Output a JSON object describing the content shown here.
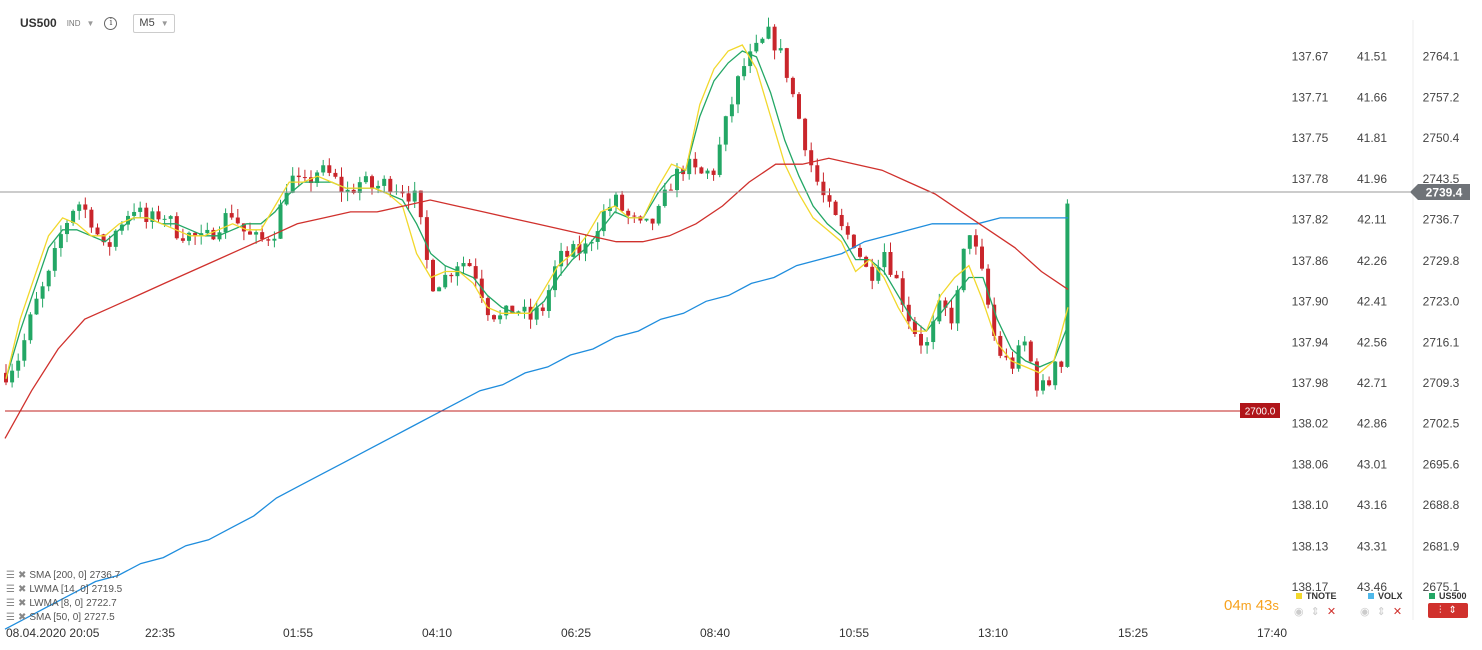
{
  "header": {
    "symbol": "US500",
    "type": "IND",
    "info_icon": "info-icon",
    "timeframe": "M5"
  },
  "chart_data": {
    "type": "candlestick",
    "symbol": "US500",
    "timeframe": "M5",
    "price_axis": {
      "range": [
        2668.7,
        2770.7
      ],
      "ticks": [
        2764.1,
        2757.2,
        2750.4,
        2743.5,
        2736.7,
        2729.8,
        2723.0,
        2716.1,
        2709.3,
        2702.5,
        2695.6,
        2688.8,
        2681.9,
        2675.1
      ]
    },
    "tnote_axis": {
      "labels": [
        "137.67",
        "137.71",
        "137.75",
        "137.78",
        "137.82",
        "137.86",
        "137.90",
        "137.94",
        "137.98",
        "138.02",
        "138.06",
        "138.10",
        "138.13",
        "138.17"
      ]
    },
    "volx_axis": {
      "labels": [
        "41.51",
        "41.66",
        "41.81",
        "41.96",
        "42.11",
        "42.26",
        "42.41",
        "42.56",
        "42.71",
        "42.86",
        "43.01",
        "43.16",
        "43.31",
        "43.46"
      ]
    },
    "time_labels": [
      "08.04.2020  20:05",
      "22:35",
      "01:55",
      "04:10",
      "06:25",
      "08:40",
      "10:55",
      "13:10",
      "15:25",
      "17:40"
    ],
    "current_price": "2739.4",
    "alert_level": {
      "value": 2700.0,
      "label": "2700.0"
    },
    "close_path": [
      2711,
      2714,
      2722,
      2727,
      2735,
      2740,
      2737,
      2731,
      2736,
      2739,
      2736,
      2738,
      2735,
      2734,
      2733,
      2736,
      2738,
      2734,
      2733,
      2735,
      2744,
      2742,
      2745,
      2744,
      2741,
      2743,
      2742,
      2743,
      2742,
      2740,
      2726,
      2727,
      2730,
      2729,
      2722,
      2720,
      2722,
      2720,
      2722,
      2730,
      2731,
      2732,
      2737,
      2740,
      2737,
      2735,
      2737,
      2743,
      2746,
      2744,
      2745,
      2754,
      2762,
      2765,
      2768,
      2763,
      2754,
      2745,
      2739,
      2735,
      2733,
      2727,
      2732,
      2726,
      2719,
      2715,
      2722,
      2720,
      2736,
      2727,
      2715,
      2712,
      2716,
      2708,
      2710,
      2739
    ],
    "series": [
      {
        "name": "SMA [200, 0]",
        "value": "2736.7",
        "color": "#1f8ddd",
        "path": [
          2668,
          2670,
          2672,
          2674,
          2676,
          2677,
          2679,
          2680,
          2682,
          2683,
          2685,
          2687,
          2690,
          2692,
          2694,
          2696,
          2698,
          2700,
          2702,
          2704,
          2706,
          2708,
          2709,
          2711,
          2712,
          2714,
          2715,
          2717,
          2718,
          2720,
          2721,
          2723,
          2724,
          2726,
          2727,
          2729,
          2730,
          2731,
          2733,
          2734,
          2735,
          2736,
          2736,
          2736,
          2737,
          2737,
          2737,
          2737
        ]
      },
      {
        "name": "LWMA [14, 0]",
        "value": "2719.5",
        "color": "#23a765",
        "path": [
          2710,
          2718,
          2725,
          2732,
          2735,
          2735,
          2734,
          2733,
          2735,
          2737,
          2737,
          2736,
          2736,
          2735,
          2734,
          2734,
          2735,
          2736,
          2736,
          2738,
          2741,
          2743,
          2743,
          2743,
          2742,
          2742,
          2742,
          2741,
          2740,
          2736,
          2731,
          2729,
          2728,
          2727,
          2724,
          2722,
          2721,
          2721,
          2723,
          2727,
          2730,
          2732,
          2735,
          2738,
          2737,
          2737,
          2741,
          2744,
          2745,
          2754,
          2760,
          2763,
          2765,
          2764,
          2758,
          2750,
          2744,
          2739,
          2736,
          2734,
          2730,
          2730,
          2728,
          2724,
          2720,
          2718,
          2721,
          2724,
          2727,
          2727,
          2720,
          2715,
          2713,
          2712,
          2713,
          2719
        ]
      },
      {
        "name": "LWMA [8, 0]",
        "value": "2722.7",
        "color": "#f2d82c",
        "path": [
          2710,
          2720,
          2727,
          2734,
          2737,
          2736,
          2734,
          2734,
          2736,
          2737,
          2737,
          2736,
          2735,
          2734,
          2734,
          2735,
          2736,
          2735,
          2735,
          2739,
          2743,
          2743,
          2744,
          2743,
          2742,
          2742,
          2742,
          2741,
          2739,
          2731,
          2727,
          2728,
          2728,
          2726,
          2722,
          2721,
          2721,
          2721,
          2725,
          2729,
          2731,
          2734,
          2738,
          2739,
          2737,
          2737,
          2742,
          2746,
          2745,
          2756,
          2762,
          2765,
          2766,
          2762,
          2754,
          2746,
          2741,
          2737,
          2735,
          2733,
          2728,
          2730,
          2727,
          2722,
          2718,
          2718,
          2724,
          2727,
          2729,
          2723,
          2716,
          2713,
          2712,
          2711,
          2713,
          2722
        ]
      },
      {
        "name": "SMA [50, 0]",
        "value": "2727.5",
        "color": "#d0312d",
        "path": [
          2700,
          2708,
          2715,
          2720,
          2722,
          2724,
          2726,
          2728,
          2730,
          2732,
          2734,
          2736,
          2737,
          2738,
          2738,
          2739,
          2740,
          2739,
          2738,
          2737,
          2736,
          2735,
          2734,
          2733,
          2733,
          2734,
          2736,
          2739,
          2743,
          2746,
          2746,
          2747,
          2746,
          2745,
          2743,
          2741,
          2738,
          2735,
          2732,
          2728,
          2725
        ]
      }
    ]
  },
  "indicators": [
    {
      "label": "SMA [200, 0]",
      "value": "2736.7"
    },
    {
      "label": "LWMA [14, 0]",
      "value": "2719.5"
    },
    {
      "label": "LWMA [8, 0]",
      "value": "2722.7"
    },
    {
      "label": "SMA [50, 0]",
      "value": "2727.5"
    }
  ],
  "timer": {
    "minutes": "04",
    "m_unit": "m",
    "seconds": "43",
    "s_unit": "s"
  },
  "legends": [
    {
      "name": "TNOTE",
      "color": "#f2d82c"
    },
    {
      "name": "VOLX",
      "color": "#4fb8ea"
    },
    {
      "name": "US500",
      "color": "#23a765"
    }
  ]
}
